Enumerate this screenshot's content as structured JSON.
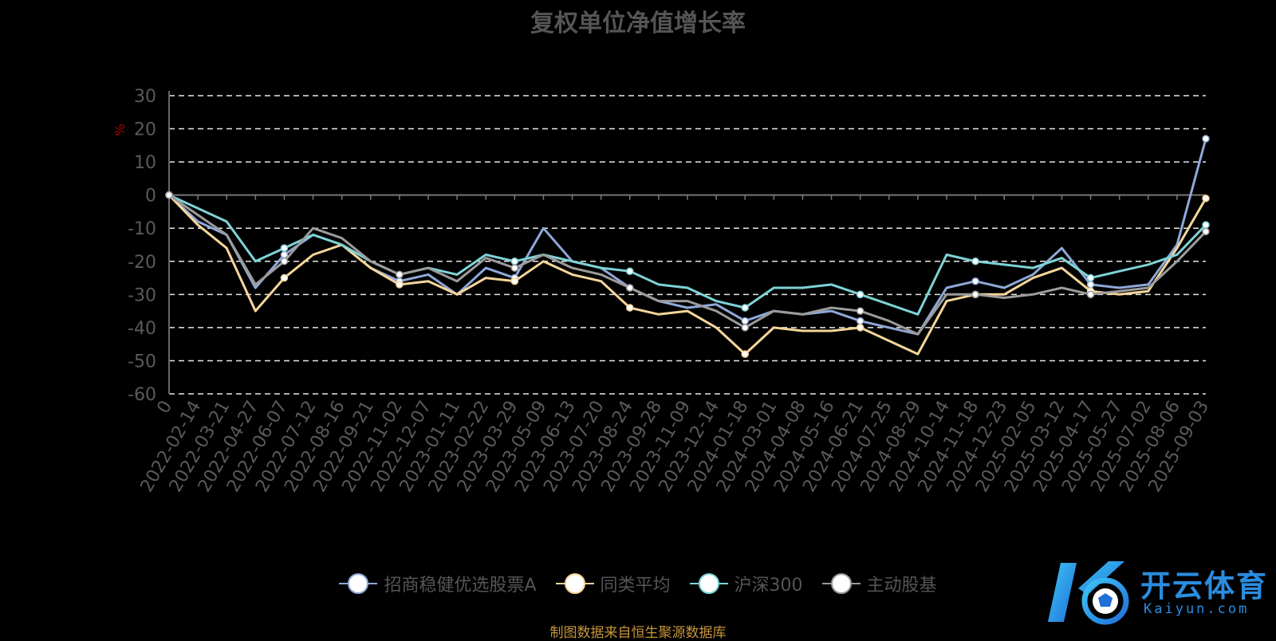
{
  "title": "复权单位净值增长率",
  "footer": "制图数据来自恒生聚源数据库",
  "brand": {
    "name": "开云体育",
    "url_text": "Kaiyun.com"
  },
  "chart_data": {
    "type": "line",
    "title": "复权单位净值增长率",
    "ylabel": "%",
    "ylim": [
      -60,
      30
    ],
    "yticks": [
      30,
      20,
      10,
      0,
      -10,
      -20,
      -30,
      -40,
      -50,
      -60
    ],
    "grid": true,
    "legend_position": "bottom",
    "x_ticklabels": [
      "0",
      "2022-02-14",
      "2022-03-21",
      "2022-04-27",
      "2022-06-07",
      "2022-07-12",
      "2022-08-16",
      "2022-09-21",
      "2022-11-02",
      "2022-12-07",
      "2023-01-11",
      "2023-02-22",
      "2023-03-29",
      "2023-05-09",
      "2023-06-13",
      "2023-07-20",
      "2023-08-24",
      "2023-09-28",
      "2023-11-09",
      "2023-12-14",
      "2024-01-18",
      "2024-03-01",
      "2024-04-08",
      "2024-05-16",
      "2024-06-21",
      "2024-07-25",
      "2024-08-29",
      "2024-10-14",
      "2024-11-18",
      "2024-12-23",
      "2025-02-05",
      "2025-03-12",
      "2025-04-17",
      "2025-05-27",
      "2025-07-02",
      "2025-08-06",
      "2025-09-03"
    ],
    "series": [
      {
        "name": "招商稳健优选股票A",
        "color": "#8fa8d8",
        "values": [
          0,
          -8,
          -12,
          -28,
          -18,
          -12,
          -15,
          -22,
          -26,
          -24,
          -30,
          -22,
          -25,
          -10,
          -20,
          -22,
          -28,
          -32,
          -34,
          -33,
          -38,
          -35,
          -36,
          -35,
          -38,
          -40,
          -42,
          -28,
          -26,
          -28,
          -24,
          -16,
          -27,
          -28,
          -27,
          -15,
          17
        ]
      },
      {
        "name": "同类平均",
        "color": "#f5d59a",
        "values": [
          0,
          -9,
          -16,
          -35,
          -25,
          -18,
          -15,
          -22,
          -27,
          -26,
          -30,
          -25,
          -26,
          -20,
          -24,
          -26,
          -34,
          -36,
          -35,
          -40,
          -48,
          -40,
          -41,
          -41,
          -40,
          -44,
          -48,
          -32,
          -30,
          -30,
          -25,
          -22,
          -29,
          -30,
          -29,
          -16,
          -1
        ]
      },
      {
        "name": "沪深300",
        "color": "#7ed3d6",
        "values": [
          0,
          -4,
          -8,
          -20,
          -16,
          -12,
          -15,
          -20,
          -24,
          -22,
          -24,
          -18,
          -20,
          -18,
          -20,
          -22,
          -23,
          -27,
          -28,
          -32,
          -34,
          -28,
          -28,
          -27,
          -30,
          -33,
          -36,
          -18,
          -20,
          -21,
          -22,
          -19,
          -25,
          -23,
          -21,
          -18,
          -9
        ]
      },
      {
        "name": "主动股基",
        "color": "#9b9b9b",
        "values": [
          0,
          -6,
          -12,
          -27,
          -20,
          -10,
          -13,
          -20,
          -24,
          -22,
          -26,
          -19,
          -22,
          -18,
          -22,
          -24,
          -28,
          -32,
          -32,
          -35,
          -40,
          -35,
          -36,
          -34,
          -35,
          -38,
          -42,
          -30,
          -30,
          -31,
          -30,
          -28,
          -30,
          -29,
          -28,
          -20,
          -11
        ]
      }
    ]
  }
}
